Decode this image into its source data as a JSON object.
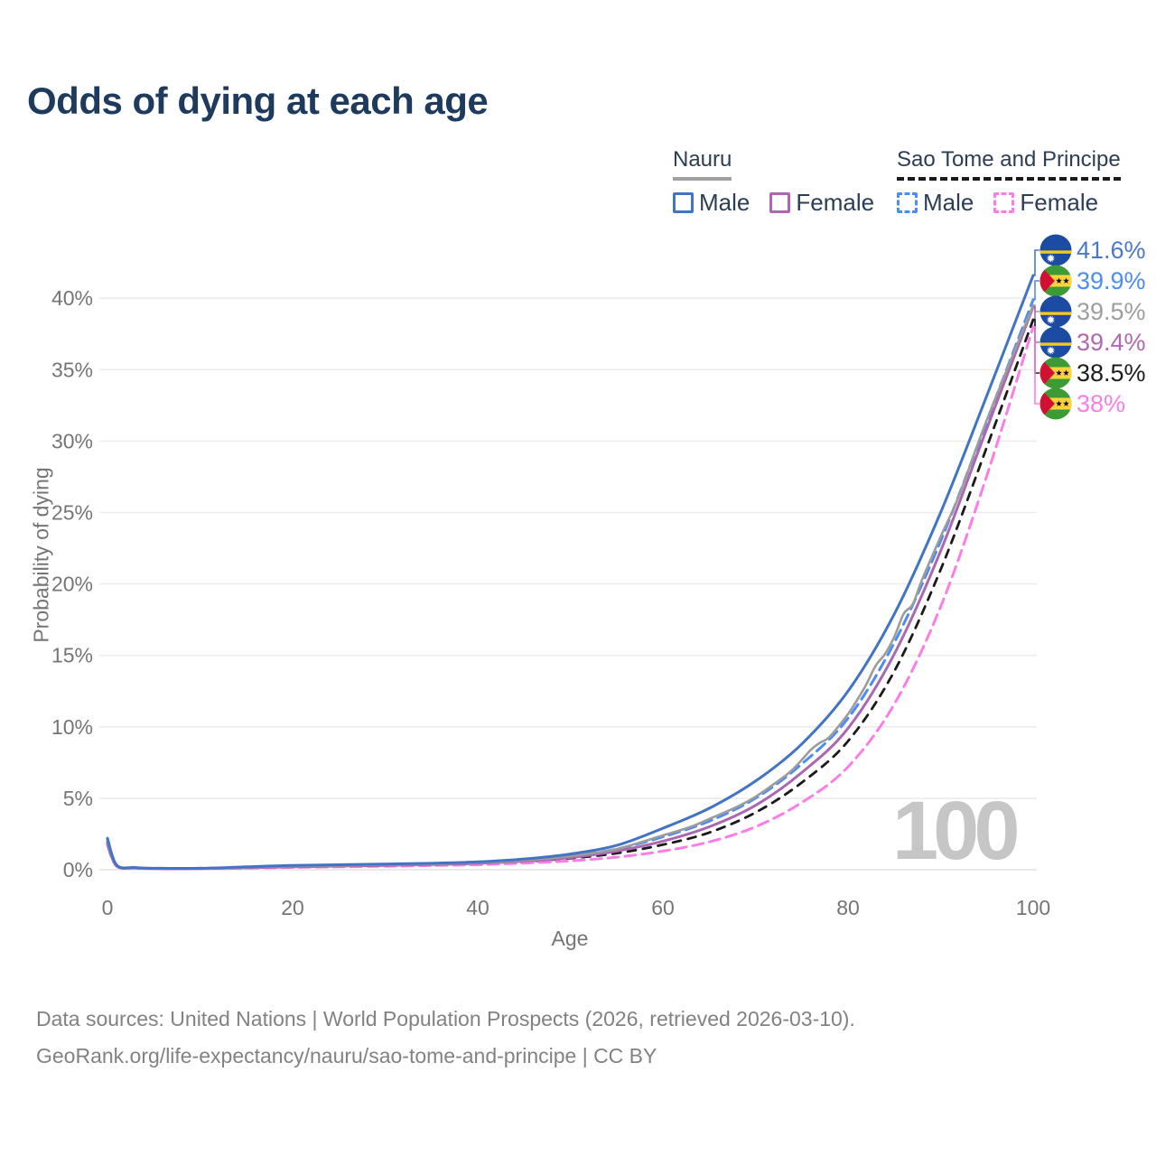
{
  "title": "Odds of dying at each age",
  "watermark": "100",
  "legend": {
    "groups": [
      {
        "name": "Nauru",
        "line_style": "solid",
        "underline_color": "#a0a0a0",
        "items": [
          {
            "label": "Male",
            "color": "#4273c4",
            "dashed": false
          },
          {
            "label": "Female",
            "color": "#ab68b0",
            "dashed": false
          }
        ]
      },
      {
        "name": "Sao Tome and Principe",
        "line_style": "dashed",
        "underline_color": "#1a1a1a",
        "items": [
          {
            "label": "Male",
            "color": "#4d8cf5",
            "dashed": true
          },
          {
            "label": "Female",
            "color": "#fc7de6",
            "dashed": true
          }
        ]
      }
    ]
  },
  "axes": {
    "x": {
      "label": "Age",
      "tick_labels": [
        "0",
        "20",
        "40",
        "60",
        "80",
        "100"
      ],
      "tick_values": [
        0,
        20,
        40,
        60,
        80,
        100
      ]
    },
    "y": {
      "label": "Probability of dying",
      "tick_labels": [
        "0%",
        "5%",
        "10%",
        "15%",
        "20%",
        "25%",
        "30%",
        "35%",
        "40%"
      ],
      "tick_values": [
        0,
        5,
        10,
        15,
        20,
        25,
        30,
        35,
        40
      ]
    }
  },
  "end_labels": [
    {
      "text": "41.6%",
      "value": 41.6,
      "color": "#4a79cb",
      "flag": "nauru",
      "series": 0
    },
    {
      "text": "39.9%",
      "value": 39.9,
      "color": "#4d8cf5",
      "flag": "stp",
      "series": 3
    },
    {
      "text": "39.5%",
      "value": 39.5,
      "color": "#9e9e9e",
      "flag": "nauru",
      "series": 2
    },
    {
      "text": "39.4%",
      "value": 39.4,
      "color": "#b168b1",
      "flag": "nauru",
      "series": 1
    },
    {
      "text": "38.5%",
      "value": 38.5,
      "color": "#1d1d1d",
      "flag": "stp",
      "series": 5
    },
    {
      "text": "38%",
      "value": 38.0,
      "color": "#fc7de6",
      "flag": "stp",
      "series": 4
    }
  ],
  "footer": {
    "line1": "Data sources: United Nations | World Population Prospects (2026, retrieved 2026-03-10).",
    "line2": "GeoRank.org/life-expectancy/nauru/sao-tome-and-principe | CC BY"
  },
  "chart_data": {
    "type": "line",
    "title": "Odds of dying at each age",
    "xlabel": "Age",
    "ylabel": "Probability of dying",
    "xlim": [
      0,
      100
    ],
    "ylim_percent": [
      0,
      44
    ],
    "grid": "horizontal",
    "legend_position": "top-right",
    "series": [
      {
        "name": "Nauru",
        "sex": "Male",
        "color": "#4273c4",
        "dash": null,
        "width": 3,
        "points": [
          [
            0,
            2.2
          ],
          [
            1,
            0.32
          ],
          [
            3,
            0.15
          ],
          [
            5,
            0.1
          ],
          [
            10,
            0.1
          ],
          [
            15,
            0.2
          ],
          [
            20,
            0.3
          ],
          [
            25,
            0.35
          ],
          [
            30,
            0.4
          ],
          [
            35,
            0.45
          ],
          [
            40,
            0.55
          ],
          [
            45,
            0.75
          ],
          [
            50,
            1.1
          ],
          [
            55,
            1.7
          ],
          [
            60,
            2.9
          ],
          [
            65,
            4.3
          ],
          [
            70,
            6.2
          ],
          [
            75,
            8.8
          ],
          [
            80,
            12.5
          ],
          [
            85,
            17.9
          ],
          [
            90,
            25.0
          ],
          [
            95,
            33.2
          ],
          [
            100,
            41.6
          ]
        ]
      },
      {
        "name": "Nauru",
        "sex": "Female",
        "color": "#ab68b0",
        "dash": null,
        "width": 3,
        "points": [
          [
            0,
            1.8
          ],
          [
            1,
            0.26
          ],
          [
            3,
            0.12
          ],
          [
            5,
            0.08
          ],
          [
            10,
            0.08
          ],
          [
            15,
            0.14
          ],
          [
            20,
            0.2
          ],
          [
            25,
            0.25
          ],
          [
            30,
            0.3
          ],
          [
            35,
            0.36
          ],
          [
            40,
            0.45
          ],
          [
            45,
            0.6
          ],
          [
            50,
            0.85
          ],
          [
            55,
            1.3
          ],
          [
            60,
            2.0
          ],
          [
            65,
            3.0
          ],
          [
            70,
            4.5
          ],
          [
            75,
            6.8
          ],
          [
            80,
            9.9
          ],
          [
            85,
            15.1
          ],
          [
            90,
            22.3
          ],
          [
            95,
            30.9
          ],
          [
            100,
            39.4
          ]
        ]
      },
      {
        "name": "Nauru",
        "sex": "combined",
        "color": "#9c9c9c",
        "dash": null,
        "width": 2.6,
        "points": [
          [
            0,
            2.0
          ],
          [
            1,
            0.28
          ],
          [
            3,
            0.13
          ],
          [
            5,
            0.09
          ],
          [
            10,
            0.09
          ],
          [
            15,
            0.17
          ],
          [
            20,
            0.25
          ],
          [
            25,
            0.3
          ],
          [
            30,
            0.35
          ],
          [
            35,
            0.4
          ],
          [
            40,
            0.5
          ],
          [
            45,
            0.65
          ],
          [
            50,
            0.95
          ],
          [
            55,
            1.45
          ],
          [
            60,
            2.4
          ],
          [
            63,
            3.0
          ],
          [
            65,
            3.55
          ],
          [
            68,
            4.4
          ],
          [
            70,
            5.1
          ],
          [
            72,
            6.0
          ],
          [
            74,
            7.0
          ],
          [
            76,
            8.4
          ],
          [
            77,
            8.9
          ],
          [
            78,
            9.3
          ],
          [
            80,
            10.9
          ],
          [
            81,
            11.9
          ],
          [
            82,
            13.0
          ],
          [
            83,
            14.3
          ],
          [
            84,
            15.1
          ],
          [
            85,
            16.3
          ],
          [
            86,
            17.9
          ],
          [
            87,
            18.6
          ],
          [
            88,
            20.3
          ],
          [
            90,
            23.3
          ],
          [
            92,
            26.2
          ],
          [
            95,
            31.5
          ],
          [
            100,
            39.5
          ]
        ]
      },
      {
        "name": "Sao Tome and Principe",
        "sex": "Male",
        "color": "#4d8cf5",
        "dash": "12 7",
        "width": 3,
        "points": [
          [
            0,
            2.1
          ],
          [
            1,
            0.3
          ],
          [
            3,
            0.14
          ],
          [
            5,
            0.1
          ],
          [
            10,
            0.1
          ],
          [
            15,
            0.17
          ],
          [
            20,
            0.27
          ],
          [
            25,
            0.32
          ],
          [
            30,
            0.37
          ],
          [
            35,
            0.42
          ],
          [
            40,
            0.5
          ],
          [
            45,
            0.68
          ],
          [
            50,
            0.95
          ],
          [
            55,
            1.45
          ],
          [
            60,
            2.3
          ],
          [
            65,
            3.4
          ],
          [
            70,
            5.0
          ],
          [
            75,
            7.4
          ],
          [
            80,
            10.6
          ],
          [
            85,
            15.9
          ],
          [
            90,
            23.0
          ],
          [
            95,
            31.4
          ],
          [
            100,
            39.9
          ]
        ]
      },
      {
        "name": "Sao Tome and Principe",
        "sex": "Female",
        "color": "#fc7de6",
        "dash": "12 7",
        "width": 3,
        "points": [
          [
            0,
            1.7
          ],
          [
            1,
            0.24
          ],
          [
            3,
            0.11
          ],
          [
            5,
            0.08
          ],
          [
            10,
            0.08
          ],
          [
            15,
            0.11
          ],
          [
            20,
            0.16
          ],
          [
            25,
            0.2
          ],
          [
            30,
            0.24
          ],
          [
            35,
            0.29
          ],
          [
            40,
            0.35
          ],
          [
            45,
            0.46
          ],
          [
            50,
            0.62
          ],
          [
            55,
            0.88
          ],
          [
            60,
            1.3
          ],
          [
            65,
            1.95
          ],
          [
            70,
            3.0
          ],
          [
            75,
            4.7
          ],
          [
            80,
            7.2
          ],
          [
            85,
            11.6
          ],
          [
            90,
            18.4
          ],
          [
            95,
            27.6
          ],
          [
            100,
            38.0
          ]
        ]
      },
      {
        "name": "Sao Tome and Principe",
        "sex": "combined",
        "color": "#1a1a1a",
        "dash": "9 8",
        "width": 2.8,
        "points": [
          [
            0,
            1.9
          ],
          [
            1,
            0.28
          ],
          [
            3,
            0.13
          ],
          [
            5,
            0.09
          ],
          [
            10,
            0.09
          ],
          [
            15,
            0.14
          ],
          [
            20,
            0.21
          ],
          [
            25,
            0.26
          ],
          [
            30,
            0.31
          ],
          [
            35,
            0.37
          ],
          [
            40,
            0.44
          ],
          [
            45,
            0.57
          ],
          [
            50,
            0.8
          ],
          [
            55,
            1.15
          ],
          [
            60,
            1.75
          ],
          [
            65,
            2.6
          ],
          [
            70,
            4.0
          ],
          [
            75,
            6.1
          ],
          [
            80,
            9.0
          ],
          [
            85,
            13.9
          ],
          [
            90,
            21.0
          ],
          [
            95,
            29.6
          ],
          [
            100,
            38.5
          ]
        ]
      }
    ]
  }
}
